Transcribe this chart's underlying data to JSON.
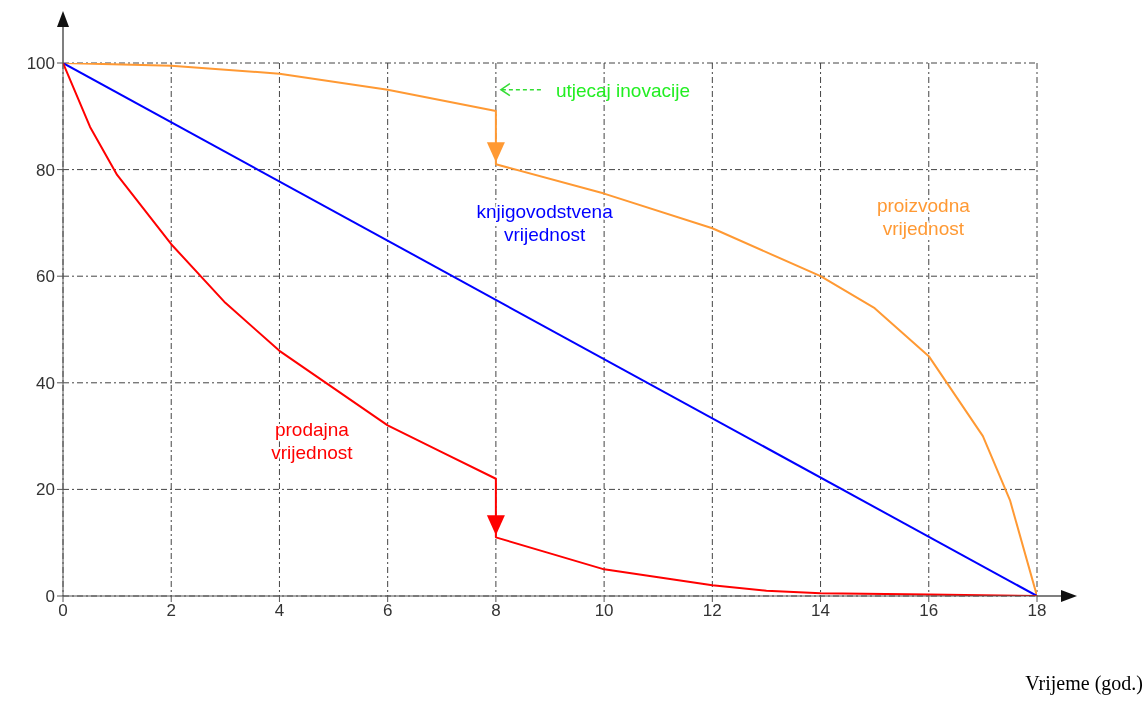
{
  "chart_data": {
    "type": "line",
    "xlabel": "Vrijeme (god.)",
    "xlim": [
      0,
      18
    ],
    "ylim": [
      0,
      100
    ],
    "xticks": [
      0,
      2,
      4,
      6,
      8,
      10,
      12,
      14,
      16,
      18
    ],
    "yticks": [
      0,
      20,
      40,
      60,
      80,
      100
    ],
    "grid": true,
    "marker": "none",
    "line_style": "solid",
    "annotations": [
      "utjecaj inovacije"
    ],
    "series": [
      {
        "name": "proizvodna vrijednost",
        "color": "#ff9933",
        "x": [
          0,
          2,
          4,
          6,
          8,
          8,
          10,
          12,
          14,
          15,
          16,
          17,
          17.5,
          18
        ],
        "values": [
          100,
          99.5,
          98,
          95,
          91,
          81,
          75.5,
          69,
          60,
          54,
          45,
          30,
          18,
          0
        ]
      },
      {
        "name": "knjigovodstvena vrijednost",
        "color": "#0000ff",
        "x": [
          0,
          18
        ],
        "values": [
          100,
          0
        ]
      },
      {
        "name": "prodajna vrijednost",
        "color": "#ff0000",
        "x": [
          0,
          0.5,
          1,
          2,
          3,
          4,
          5,
          6,
          7,
          8,
          8,
          9,
          10,
          11,
          12,
          13,
          14,
          16,
          18
        ],
        "values": [
          100,
          88,
          79,
          66,
          55,
          46,
          39,
          32,
          27,
          22,
          11,
          8,
          5,
          3.5,
          2,
          1,
          0.5,
          0.3,
          0
        ]
      }
    ]
  }
}
